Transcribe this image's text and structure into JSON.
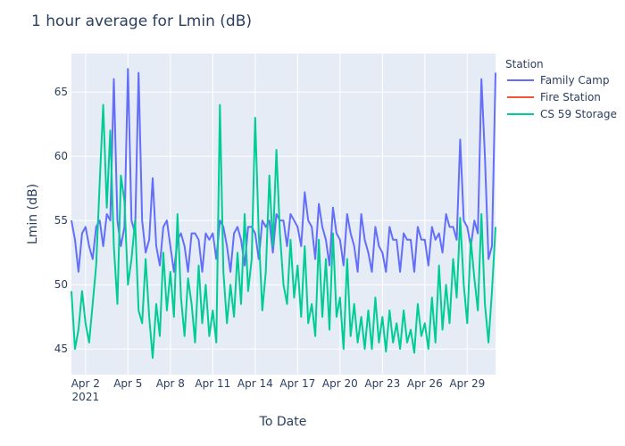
{
  "chart_data": {
    "type": "line",
    "title": "1 hour average for Lmin (dB)",
    "xlabel": "To Date",
    "ylabel": "Lmin (dB)",
    "x_start": "2021-04-01",
    "x_end": "2021-05-01",
    "xlim": [
      "2021-04-01",
      "2021-05-01"
    ],
    "ylim": [
      43,
      68
    ],
    "x_ticks": [
      {
        "date": "2021-04-02",
        "label": "Apr 2",
        "sublabel": "2021"
      },
      {
        "date": "2021-04-05",
        "label": "Apr 5"
      },
      {
        "date": "2021-04-08",
        "label": "Apr 8"
      },
      {
        "date": "2021-04-11",
        "label": "Apr 11"
      },
      {
        "date": "2021-04-14",
        "label": "Apr 14"
      },
      {
        "date": "2021-04-17",
        "label": "Apr 17"
      },
      {
        "date": "2021-04-20",
        "label": "Apr 20"
      },
      {
        "date": "2021-04-23",
        "label": "Apr 23"
      },
      {
        "date": "2021-04-26",
        "label": "Apr 26"
      },
      {
        "date": "2021-04-29",
        "label": "Apr 29"
      }
    ],
    "y_ticks": [
      45,
      50,
      55,
      60,
      65
    ],
    "grid": true,
    "legend": {
      "title": "Station",
      "placement": "right"
    },
    "series": [
      {
        "name": "Family Camp",
        "color": "#636efa",
        "points": [
          [
            "2021-04-01T00:00",
            55.0
          ],
          [
            "2021-04-01T06:00",
            53.5
          ],
          [
            "2021-04-01T12:00",
            51.0
          ],
          [
            "2021-04-01T18:00",
            54.0
          ],
          [
            "2021-04-02T00:00",
            54.5
          ],
          [
            "2021-04-02T06:00",
            53.0
          ],
          [
            "2021-04-02T12:00",
            52.0
          ],
          [
            "2021-04-02T18:00",
            54.5
          ],
          [
            "2021-04-03T00:00",
            55.0
          ],
          [
            "2021-04-03T06:00",
            53.0
          ],
          [
            "2021-04-03T12:00",
            55.5
          ],
          [
            "2021-04-03T18:00",
            55.0
          ],
          [
            "2021-04-04T00:00",
            66.0
          ],
          [
            "2021-04-04T06:00",
            55.0
          ],
          [
            "2021-04-04T12:00",
            53.0
          ],
          [
            "2021-04-04T18:00",
            54.5
          ],
          [
            "2021-04-05T00:00",
            66.8
          ],
          [
            "2021-04-05T06:00",
            55.0
          ],
          [
            "2021-04-05T12:00",
            54.0
          ],
          [
            "2021-04-05T18:00",
            66.5
          ],
          [
            "2021-04-06T00:00",
            55.0
          ],
          [
            "2021-04-06T06:00",
            52.5
          ],
          [
            "2021-04-06T12:00",
            53.5
          ],
          [
            "2021-04-06T18:00",
            58.3
          ],
          [
            "2021-04-07T00:00",
            53.0
          ],
          [
            "2021-04-07T06:00",
            51.5
          ],
          [
            "2021-04-07T12:00",
            54.5
          ],
          [
            "2021-04-07T18:00",
            55.0
          ],
          [
            "2021-04-08T00:00",
            53.0
          ],
          [
            "2021-04-08T06:00",
            51.0
          ],
          [
            "2021-04-08T12:00",
            53.5
          ],
          [
            "2021-04-08T18:00",
            54.0
          ],
          [
            "2021-04-09T00:00",
            53.0
          ],
          [
            "2021-04-09T06:00",
            51.0
          ],
          [
            "2021-04-09T12:00",
            54.0
          ],
          [
            "2021-04-09T18:00",
            54.0
          ],
          [
            "2021-04-10T00:00",
            53.5
          ],
          [
            "2021-04-10T06:00",
            51.0
          ],
          [
            "2021-04-10T12:00",
            54.0
          ],
          [
            "2021-04-10T18:00",
            53.5
          ],
          [
            "2021-04-11T00:00",
            54.0
          ],
          [
            "2021-04-11T06:00",
            52.0
          ],
          [
            "2021-04-11T12:00",
            55.0
          ],
          [
            "2021-04-11T18:00",
            54.5
          ],
          [
            "2021-04-12T00:00",
            53.0
          ],
          [
            "2021-04-12T06:00",
            51.0
          ],
          [
            "2021-04-12T12:00",
            54.0
          ],
          [
            "2021-04-12T18:00",
            54.5
          ],
          [
            "2021-04-13T00:00",
            53.5
          ],
          [
            "2021-04-13T06:00",
            51.5
          ],
          [
            "2021-04-13T12:00",
            54.5
          ],
          [
            "2021-04-13T18:00",
            54.5
          ],
          [
            "2021-04-14T00:00",
            54.0
          ],
          [
            "2021-04-14T06:00",
            52.0
          ],
          [
            "2021-04-14T12:00",
            55.0
          ],
          [
            "2021-04-14T18:00",
            54.5
          ],
          [
            "2021-04-15T00:00",
            55.0
          ],
          [
            "2021-04-15T06:00",
            52.5
          ],
          [
            "2021-04-15T12:00",
            55.5
          ],
          [
            "2021-04-15T18:00",
            55.0
          ],
          [
            "2021-04-16T00:00",
            55.0
          ],
          [
            "2021-04-16T06:00",
            53.0
          ],
          [
            "2021-04-16T12:00",
            55.5
          ],
          [
            "2021-04-16T18:00",
            55.0
          ],
          [
            "2021-04-17T00:00",
            54.5
          ],
          [
            "2021-04-17T06:00",
            53.0
          ],
          [
            "2021-04-17T12:00",
            57.2
          ],
          [
            "2021-04-17T18:00",
            55.0
          ],
          [
            "2021-04-18T00:00",
            54.5
          ],
          [
            "2021-04-18T06:00",
            52.0
          ],
          [
            "2021-04-18T12:00",
            56.3
          ],
          [
            "2021-04-18T18:00",
            54.5
          ],
          [
            "2021-04-19T00:00",
            53.5
          ],
          [
            "2021-04-19T06:00",
            51.5
          ],
          [
            "2021-04-19T12:00",
            56.0
          ],
          [
            "2021-04-19T18:00",
            54.0
          ],
          [
            "2021-04-20T00:00",
            53.5
          ],
          [
            "2021-04-20T06:00",
            51.5
          ],
          [
            "2021-04-20T12:00",
            55.5
          ],
          [
            "2021-04-20T18:00",
            54.0
          ],
          [
            "2021-04-21T00:00",
            53.0
          ],
          [
            "2021-04-21T06:00",
            51.0
          ],
          [
            "2021-04-21T12:00",
            55.5
          ],
          [
            "2021-04-21T18:00",
            53.5
          ],
          [
            "2021-04-22T00:00",
            52.5
          ],
          [
            "2021-04-22T06:00",
            51.0
          ],
          [
            "2021-04-22T12:00",
            54.5
          ],
          [
            "2021-04-22T18:00",
            53.0
          ],
          [
            "2021-04-23T00:00",
            52.5
          ],
          [
            "2021-04-23T06:00",
            51.0
          ],
          [
            "2021-04-23T12:00",
            54.5
          ],
          [
            "2021-04-23T18:00",
            53.5
          ],
          [
            "2021-04-24T00:00",
            53.5
          ],
          [
            "2021-04-24T06:00",
            51.0
          ],
          [
            "2021-04-24T12:00",
            54.0
          ],
          [
            "2021-04-24T18:00",
            53.5
          ],
          [
            "2021-04-25T00:00",
            53.5
          ],
          [
            "2021-04-25T06:00",
            51.0
          ],
          [
            "2021-04-25T12:00",
            54.5
          ],
          [
            "2021-04-25T18:00",
            53.5
          ],
          [
            "2021-04-26T00:00",
            53.5
          ],
          [
            "2021-04-26T06:00",
            51.5
          ],
          [
            "2021-04-26T12:00",
            54.5
          ],
          [
            "2021-04-26T18:00",
            53.5
          ],
          [
            "2021-04-27T00:00",
            54.0
          ],
          [
            "2021-04-27T06:00",
            52.5
          ],
          [
            "2021-04-27T12:00",
            55.5
          ],
          [
            "2021-04-27T18:00",
            54.5
          ],
          [
            "2021-04-28T00:00",
            54.5
          ],
          [
            "2021-04-28T06:00",
            53.5
          ],
          [
            "2021-04-28T12:00",
            61.3
          ],
          [
            "2021-04-28T18:00",
            55.0
          ],
          [
            "2021-04-29T00:00",
            54.5
          ],
          [
            "2021-04-29T06:00",
            53.0
          ],
          [
            "2021-04-29T12:00",
            55.0
          ],
          [
            "2021-04-29T18:00",
            54.0
          ],
          [
            "2021-04-30T00:00",
            66.0
          ],
          [
            "2021-04-30T06:00",
            60.0
          ],
          [
            "2021-04-30T12:00",
            52.0
          ],
          [
            "2021-04-30T18:00",
            53.0
          ],
          [
            "2021-05-01T00:00",
            66.5
          ]
        ]
      },
      {
        "name": "Fire Station",
        "color": "#ef553b",
        "points": []
      },
      {
        "name": "CS 59 Storage",
        "color": "#00cc96",
        "points": [
          [
            "2021-04-01T00:00",
            49.5
          ],
          [
            "2021-04-01T06:00",
            45.0
          ],
          [
            "2021-04-01T12:00",
            46.5
          ],
          [
            "2021-04-01T18:00",
            49.5
          ],
          [
            "2021-04-02T00:00",
            47.0
          ],
          [
            "2021-04-02T06:00",
            45.5
          ],
          [
            "2021-04-02T12:00",
            48.5
          ],
          [
            "2021-04-02T18:00",
            51.5
          ],
          [
            "2021-04-03T00:00",
            58.0
          ],
          [
            "2021-04-03T06:00",
            64.0
          ],
          [
            "2021-04-03T12:00",
            56.0
          ],
          [
            "2021-04-03T18:00",
            62.0
          ],
          [
            "2021-04-04T00:00",
            53.0
          ],
          [
            "2021-04-04T06:00",
            48.5
          ],
          [
            "2021-04-04T12:00",
            58.5
          ],
          [
            "2021-04-04T18:00",
            56.5
          ],
          [
            "2021-04-05T00:00",
            50.0
          ],
          [
            "2021-04-05T06:00",
            52.0
          ],
          [
            "2021-04-05T12:00",
            55.0
          ],
          [
            "2021-04-05T18:00",
            48.0
          ],
          [
            "2021-04-06T00:00",
            47.0
          ],
          [
            "2021-04-06T06:00",
            52.0
          ],
          [
            "2021-04-06T12:00",
            47.5
          ],
          [
            "2021-04-06T18:00",
            44.3
          ],
          [
            "2021-04-07T00:00",
            48.5
          ],
          [
            "2021-04-07T06:00",
            46.0
          ],
          [
            "2021-04-07T12:00",
            52.5
          ],
          [
            "2021-04-07T18:00",
            48.0
          ],
          [
            "2021-04-08T00:00",
            51.0
          ],
          [
            "2021-04-08T06:00",
            47.5
          ],
          [
            "2021-04-08T12:00",
            55.5
          ],
          [
            "2021-04-08T18:00",
            49.0
          ],
          [
            "2021-04-09T00:00",
            46.0
          ],
          [
            "2021-04-09T06:00",
            50.5
          ],
          [
            "2021-04-09T12:00",
            48.5
          ],
          [
            "2021-04-09T18:00",
            45.5
          ],
          [
            "2021-04-10T00:00",
            51.5
          ],
          [
            "2021-04-10T06:00",
            47.0
          ],
          [
            "2021-04-10T12:00",
            50.0
          ],
          [
            "2021-04-10T18:00",
            46.0
          ],
          [
            "2021-04-11T00:00",
            48.0
          ],
          [
            "2021-04-11T06:00",
            45.5
          ],
          [
            "2021-04-11T12:00",
            64.0
          ],
          [
            "2021-04-11T18:00",
            51.0
          ],
          [
            "2021-04-12T00:00",
            47.0
          ],
          [
            "2021-04-12T06:00",
            50.0
          ],
          [
            "2021-04-12T12:00",
            47.5
          ],
          [
            "2021-04-12T18:00",
            52.5
          ],
          [
            "2021-04-13T00:00",
            48.5
          ],
          [
            "2021-04-13T06:00",
            55.5
          ],
          [
            "2021-04-13T12:00",
            49.5
          ],
          [
            "2021-04-13T18:00",
            52.0
          ],
          [
            "2021-04-14T00:00",
            63.0
          ],
          [
            "2021-04-14T06:00",
            54.0
          ],
          [
            "2021-04-14T12:00",
            48.0
          ],
          [
            "2021-04-14T18:00",
            51.0
          ],
          [
            "2021-04-15T00:00",
            58.5
          ],
          [
            "2021-04-15T06:00",
            53.0
          ],
          [
            "2021-04-15T12:00",
            60.5
          ],
          [
            "2021-04-15T18:00",
            54.0
          ],
          [
            "2021-04-16T00:00",
            50.0
          ],
          [
            "2021-04-16T06:00",
            48.5
          ],
          [
            "2021-04-16T12:00",
            53.5
          ],
          [
            "2021-04-16T18:00",
            49.0
          ],
          [
            "2021-04-17T00:00",
            51.5
          ],
          [
            "2021-04-17T06:00",
            47.5
          ],
          [
            "2021-04-17T12:00",
            53.0
          ],
          [
            "2021-04-17T18:00",
            47.0
          ],
          [
            "2021-04-18T00:00",
            48.5
          ],
          [
            "2021-04-18T06:00",
            46.0
          ],
          [
            "2021-04-18T12:00",
            53.5
          ],
          [
            "2021-04-18T18:00",
            47.5
          ],
          [
            "2021-04-19T00:00",
            52.0
          ],
          [
            "2021-04-19T06:00",
            46.5
          ],
          [
            "2021-04-19T12:00",
            54.0
          ],
          [
            "2021-04-19T18:00",
            47.5
          ],
          [
            "2021-04-20T00:00",
            49.0
          ],
          [
            "2021-04-20T06:00",
            45.0
          ],
          [
            "2021-04-20T12:00",
            52.0
          ],
          [
            "2021-04-20T18:00",
            46.0
          ],
          [
            "2021-04-21T00:00",
            48.5
          ],
          [
            "2021-04-21T06:00",
            45.5
          ],
          [
            "2021-04-21T12:00",
            47.5
          ],
          [
            "2021-04-21T18:00",
            45.0
          ],
          [
            "2021-04-22T00:00",
            48.0
          ],
          [
            "2021-04-22T06:00",
            45.0
          ],
          [
            "2021-04-22T12:00",
            49.0
          ],
          [
            "2021-04-22T18:00",
            45.5
          ],
          [
            "2021-04-23T00:00",
            47.5
          ],
          [
            "2021-04-23T06:00",
            44.8
          ],
          [
            "2021-04-23T12:00",
            48.0
          ],
          [
            "2021-04-23T18:00",
            45.5
          ],
          [
            "2021-04-24T00:00",
            47.0
          ],
          [
            "2021-04-24T06:00",
            45.0
          ],
          [
            "2021-04-24T12:00",
            48.0
          ],
          [
            "2021-04-24T18:00",
            45.5
          ],
          [
            "2021-04-25T00:00",
            46.5
          ],
          [
            "2021-04-25T06:00",
            44.7
          ],
          [
            "2021-04-25T12:00",
            48.5
          ],
          [
            "2021-04-25T18:00",
            46.0
          ],
          [
            "2021-04-26T00:00",
            47.0
          ],
          [
            "2021-04-26T06:00",
            45.0
          ],
          [
            "2021-04-26T12:00",
            49.0
          ],
          [
            "2021-04-26T18:00",
            45.5
          ],
          [
            "2021-04-27T00:00",
            51.5
          ],
          [
            "2021-04-27T06:00",
            46.5
          ],
          [
            "2021-04-27T12:00",
            50.0
          ],
          [
            "2021-04-27T18:00",
            47.0
          ],
          [
            "2021-04-28T00:00",
            52.0
          ],
          [
            "2021-04-28T06:00",
            49.0
          ],
          [
            "2021-04-28T12:00",
            55.2
          ],
          [
            "2021-04-28T18:00",
            50.0
          ],
          [
            "2021-04-29T00:00",
            47.0
          ],
          [
            "2021-04-29T06:00",
            53.5
          ],
          [
            "2021-04-29T12:00",
            50.5
          ],
          [
            "2021-04-29T18:00",
            48.0
          ],
          [
            "2021-04-30T00:00",
            55.5
          ],
          [
            "2021-04-30T06:00",
            48.5
          ],
          [
            "2021-04-30T12:00",
            45.5
          ],
          [
            "2021-04-30T18:00",
            49.5
          ],
          [
            "2021-05-01T00:00",
            54.5
          ]
        ]
      }
    ]
  }
}
